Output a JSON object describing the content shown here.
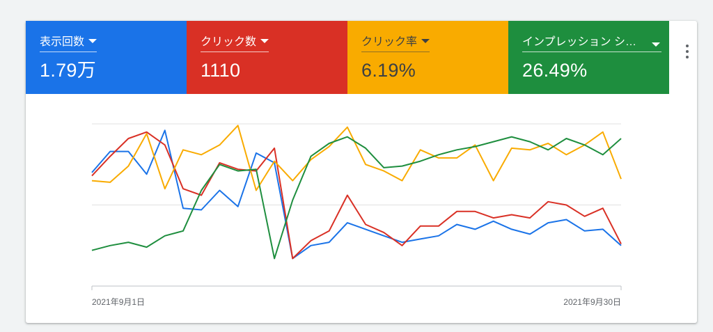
{
  "colors": {
    "impressions": "#1a73e8",
    "clicks": "#d93025",
    "ctr": "#f9ab00",
    "impression_share": "#1e8e3e",
    "grid": "#e0e0e0",
    "axis": "#bdc1c6"
  },
  "tiles": [
    {
      "label": "表示回数",
      "value": "1.79万",
      "color": "#1a73e8",
      "icon": "caret-down-icon"
    },
    {
      "label": "クリック数",
      "value": "1110",
      "color": "#d93025",
      "icon": "caret-down-icon"
    },
    {
      "label": "クリック率",
      "value": "6.19%",
      "color": "#f9ab00",
      "icon": "caret-down-icon"
    },
    {
      "label": "インプレッション シ…",
      "value": "26.49%",
      "color": "#1e8e3e",
      "icon": "caret-down-icon"
    }
  ],
  "menu_icon": "more-vert-icon",
  "chart_data": {
    "type": "line",
    "x_start_label": "2021年9月1日",
    "x_end_label": "2021年9月30日",
    "x": [
      1,
      2,
      3,
      4,
      5,
      6,
      7,
      8,
      9,
      10,
      11,
      12,
      13,
      14,
      15,
      16,
      17,
      18,
      19,
      20,
      21,
      22,
      23,
      24,
      25,
      26,
      27,
      28,
      29,
      30
    ],
    "normalized_axis": {
      "ylim": [
        0,
        100
      ],
      "gridlines": [
        0,
        50,
        100
      ]
    },
    "series": [
      {
        "key": "impressions",
        "values": [
          70,
          83,
          83,
          69,
          96,
          48,
          47,
          59,
          49,
          82,
          76,
          17,
          25,
          27,
          39,
          35,
          31,
          27,
          29,
          31,
          38,
          35,
          40,
          35,
          32,
          39,
          41,
          34,
          35,
          25
        ]
      },
      {
        "key": "clicks",
        "values": [
          68,
          80,
          91,
          95,
          87,
          60,
          56,
          76,
          72,
          71,
          85,
          17,
          28,
          34,
          56,
          38,
          33,
          25,
          37,
          37,
          46,
          46,
          42,
          44,
          42,
          52,
          50,
          43,
          48,
          26
        ]
      },
      {
        "key": "ctr",
        "values": [
          65,
          64,
          74,
          94,
          60,
          84,
          81,
          87,
          99,
          59,
          77,
          65,
          78,
          86,
          98,
          75,
          71,
          65,
          84,
          79,
          79,
          87,
          65,
          85,
          84,
          88,
          81,
          87,
          95,
          66
        ]
      },
      {
        "key": "impression_share",
        "values": [
          22,
          25,
          27,
          24,
          31,
          34,
          59,
          75,
          71,
          72,
          17,
          53,
          80,
          88,
          92,
          85,
          73,
          74,
          77,
          81,
          84,
          86,
          89,
          92,
          89,
          84,
          91,
          87,
          81,
          91
        ]
      }
    ]
  }
}
